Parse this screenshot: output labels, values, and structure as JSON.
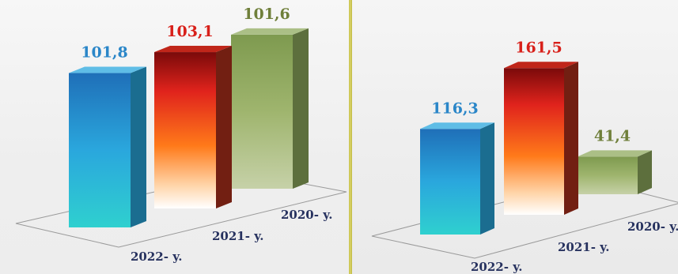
{
  "chart_data": [
    {
      "type": "bar",
      "categories": [
        "2022- y.",
        "2021- y.",
        "2020- y."
      ],
      "values": [
        101.8,
        103.1,
        101.6
      ],
      "value_labels": [
        "101,8",
        "103,1",
        "101,6"
      ],
      "colors": [
        "#2aa7dd",
        "#e0231c",
        "#8faa5e"
      ],
      "label_colors": [
        "#2a86c8",
        "#d8201a",
        "#6f7f3a"
      ]
    },
    {
      "type": "bar",
      "categories": [
        "2022- y.",
        "2021- y.",
        "2020- y."
      ],
      "values": [
        116.3,
        161.5,
        41.4
      ],
      "value_labels": [
        "116,3",
        "161,5",
        "41,4"
      ],
      "colors": [
        "#2aa7dd",
        "#e0231c",
        "#8faa5e"
      ],
      "label_colors": [
        "#2a86c8",
        "#d8201a",
        "#6f7f3a"
      ]
    }
  ]
}
